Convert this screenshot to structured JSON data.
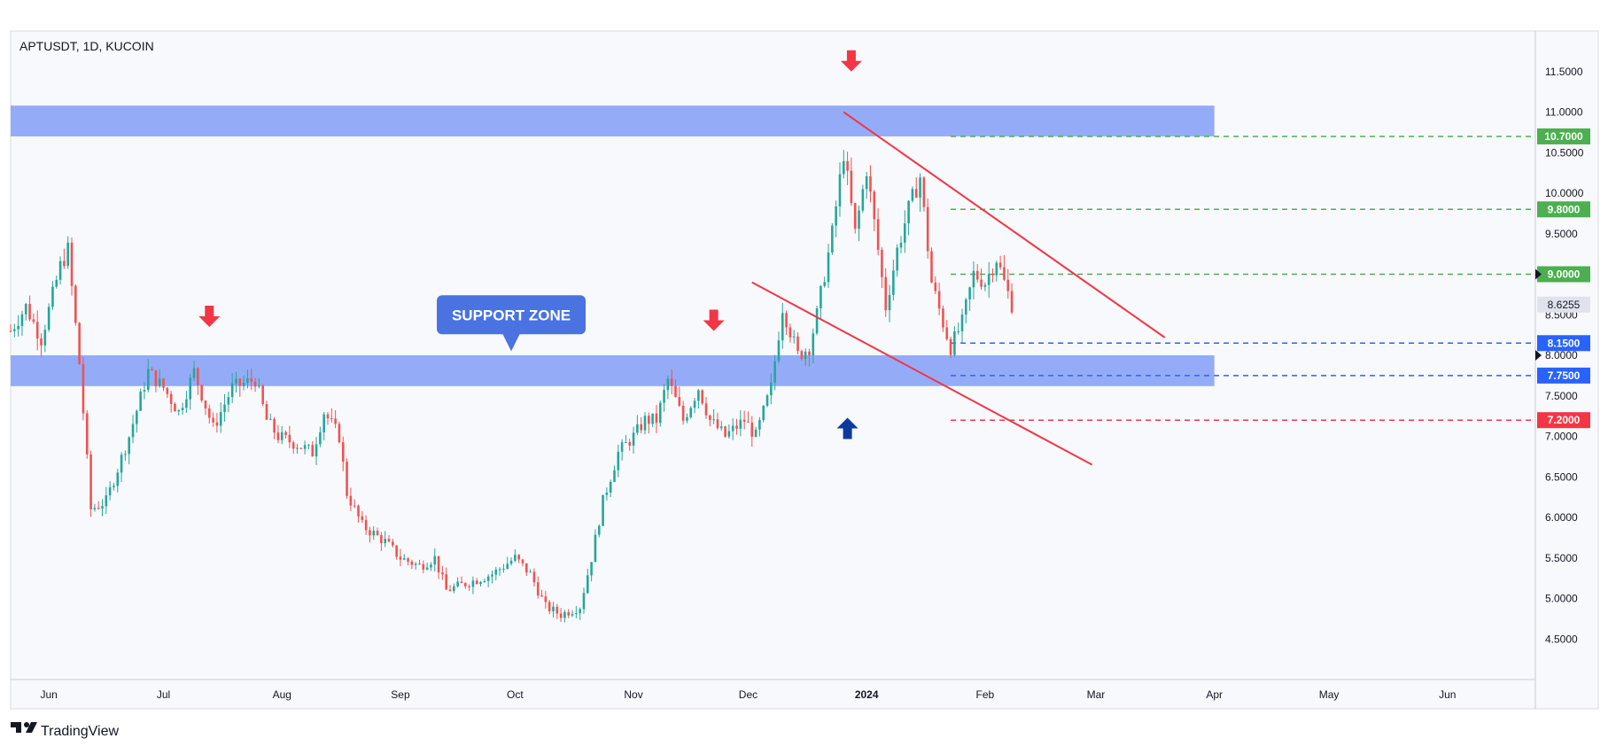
{
  "symbol_title": "APTUSDT, 1D, KUCOIN",
  "branding": "TradingView",
  "callout_label": "SUPPORT ZONE",
  "colors": {
    "bull": "#26a69a",
    "bear": "#ef5350",
    "zone": "#8ea8f7",
    "callout": "#4a72e0",
    "level_green": "#4caf50",
    "level_blue": "#2962ff",
    "level_red": "#f23645",
    "current": "#e0e3eb",
    "trendline": "#f23645"
  },
  "chart_data": {
    "type": "candlestick",
    "ylim": [
      4.0,
      12.0
    ],
    "y_ticks": [
      "4.5000",
      "5.0000",
      "5.5000",
      "6.0000",
      "6.5000",
      "7.0000",
      "7.5000",
      "8.0000",
      "8.5000",
      "9.0000",
      "9.5000",
      "10.0000",
      "10.5000",
      "11.0000",
      "11.5000"
    ],
    "x_ticks": [
      {
        "label": "Jun",
        "date": "2023-06-01",
        "bold": false
      },
      {
        "label": "Jul",
        "date": "2023-07-01",
        "bold": false
      },
      {
        "label": "Aug",
        "date": "2023-08-01",
        "bold": false
      },
      {
        "label": "Sep",
        "date": "2023-09-01",
        "bold": false
      },
      {
        "label": "Oct",
        "date": "2023-10-01",
        "bold": false
      },
      {
        "label": "Nov",
        "date": "2023-11-01",
        "bold": false
      },
      {
        "label": "Dec",
        "date": "2023-12-01",
        "bold": false
      },
      {
        "label": "2024",
        "date": "2024-01-01",
        "bold": true
      },
      {
        "label": "Feb",
        "date": "2024-02-01",
        "bold": false
      },
      {
        "label": "Mar",
        "date": "2024-03-01",
        "bold": false
      },
      {
        "label": "Apr",
        "date": "2024-04-01",
        "bold": false
      },
      {
        "label": "May",
        "date": "2024-05-01",
        "bold": false
      },
      {
        "label": "Jun",
        "date": "2024-06-01",
        "bold": false
      }
    ],
    "x_range": [
      "2023-05-22",
      "2024-06-24"
    ],
    "path": [
      [
        "2023-05-22",
        8.3
      ],
      [
        "2023-05-26",
        8.6
      ],
      [
        "2023-05-30",
        8.2
      ],
      [
        "2023-06-04",
        9.1
      ],
      [
        "2023-06-06",
        9.3
      ],
      [
        "2023-06-09",
        7.9
      ],
      [
        "2023-06-12",
        6.1
      ],
      [
        "2023-06-16",
        6.2
      ],
      [
        "2023-06-22",
        7.0
      ],
      [
        "2023-06-27",
        7.8
      ],
      [
        "2023-07-01",
        7.6
      ],
      [
        "2023-07-05",
        7.3
      ],
      [
        "2023-07-09",
        7.8
      ],
      [
        "2023-07-14",
        7.1
      ],
      [
        "2023-07-19",
        7.6
      ],
      [
        "2023-07-25",
        7.7
      ],
      [
        "2023-07-28",
        7.2
      ],
      [
        "2023-07-31",
        7.0
      ],
      [
        "2023-08-05",
        6.9
      ],
      [
        "2023-08-09",
        6.8
      ],
      [
        "2023-08-12",
        7.3
      ],
      [
        "2023-08-16",
        7.0
      ],
      [
        "2023-08-18",
        6.3
      ],
      [
        "2023-08-22",
        5.9
      ],
      [
        "2023-08-28",
        5.7
      ],
      [
        "2023-09-01",
        5.5
      ],
      [
        "2023-09-06",
        5.4
      ],
      [
        "2023-09-10",
        5.5
      ],
      [
        "2023-09-13",
        5.1
      ],
      [
        "2023-09-19",
        5.2
      ],
      [
        "2023-09-25",
        5.3
      ],
      [
        "2023-10-01",
        5.5
      ],
      [
        "2023-10-05",
        5.3
      ],
      [
        "2023-10-09",
        4.9
      ],
      [
        "2023-10-13",
        4.8
      ],
      [
        "2023-10-18",
        4.9
      ],
      [
        "2023-10-21",
        5.5
      ],
      [
        "2023-10-24",
        6.2
      ],
      [
        "2023-10-28",
        6.8
      ],
      [
        "2023-11-01",
        7.0
      ],
      [
        "2023-11-04",
        7.2
      ],
      [
        "2023-11-07",
        7.2
      ],
      [
        "2023-11-10",
        7.7
      ],
      [
        "2023-11-14",
        7.2
      ],
      [
        "2023-11-18",
        7.6
      ],
      [
        "2023-11-21",
        7.2
      ],
      [
        "2023-11-25",
        7.0
      ],
      [
        "2023-11-30",
        7.2
      ],
      [
        "2023-12-03",
        7.0
      ],
      [
        "2023-12-07",
        7.6
      ],
      [
        "2023-12-10",
        8.6
      ],
      [
        "2023-12-14",
        8.0
      ],
      [
        "2023-12-17",
        8.1
      ],
      [
        "2023-12-19",
        8.5
      ],
      [
        "2023-12-23",
        9.5
      ],
      [
        "2023-12-26",
        10.5
      ],
      [
        "2023-12-29",
        9.5
      ],
      [
        "2024-01-01",
        10.3
      ],
      [
        "2024-01-04",
        9.3
      ],
      [
        "2024-01-06",
        8.6
      ],
      [
        "2024-01-09",
        9.3
      ],
      [
        "2024-01-12",
        9.8
      ],
      [
        "2024-01-15",
        10.2
      ],
      [
        "2024-01-18",
        8.9
      ],
      [
        "2024-01-21",
        8.4
      ],
      [
        "2024-01-23",
        8.1
      ],
      [
        "2024-01-26",
        8.4
      ],
      [
        "2024-01-29",
        9.0
      ],
      [
        "2024-02-01",
        8.9
      ],
      [
        "2024-02-04",
        9.2
      ],
      [
        "2024-02-06",
        8.9
      ],
      [
        "2024-02-08",
        8.63
      ]
    ],
    "zones": [
      {
        "name": "resistance-zone",
        "low": 10.7,
        "high": 11.08,
        "start": "2023-05-22",
        "end": "2024-04-01"
      },
      {
        "name": "support-zone",
        "low": 7.62,
        "high": 8.0,
        "start": "2023-05-22",
        "end": "2024-04-01"
      }
    ],
    "levels": [
      {
        "value": 10.7,
        "label": "10.7000",
        "color": "level_green",
        "start": "2024-01-23"
      },
      {
        "value": 9.8,
        "label": "9.8000",
        "color": "level_green",
        "start": "2024-01-23"
      },
      {
        "value": 9.0,
        "label": "9.0000",
        "color": "level_green",
        "start": "2024-01-23"
      },
      {
        "value": 8.15,
        "label": "8.1500",
        "color": "level_blue",
        "start": "2024-01-23"
      },
      {
        "value": 7.75,
        "label": "7.7500",
        "color": "level_blue",
        "start": "2024-01-23"
      },
      {
        "value": 7.2,
        "label": "7.2000",
        "color": "level_red",
        "start": "2024-01-23"
      }
    ],
    "current_price": {
      "value": 8.6255,
      "label": "8.6255"
    },
    "trendlines": [
      {
        "name": "upper-trendline",
        "from": [
          "2023-12-26",
          11.0
        ],
        "to": [
          "2024-03-19",
          8.22
        ]
      },
      {
        "name": "lower-trendline",
        "from": [
          "2023-12-02",
          8.9
        ],
        "to": [
          "2024-02-29",
          6.65
        ]
      }
    ],
    "arrows": [
      {
        "name": "red-arrow-july",
        "dir": "down",
        "date": "2023-07-13",
        "value": 8.35
      },
      {
        "name": "red-arrow-november",
        "dir": "down",
        "date": "2023-11-22",
        "value": 8.3
      },
      {
        "name": "red-arrow-december",
        "dir": "down",
        "date": "2023-12-28",
        "value": 11.5
      },
      {
        "name": "blue-arrow-december",
        "dir": "up",
        "date": "2023-12-27",
        "value": 7.23
      }
    ],
    "callout": {
      "date": "2023-09-30",
      "value": 8.5,
      "tip_value": 8.05
    }
  }
}
